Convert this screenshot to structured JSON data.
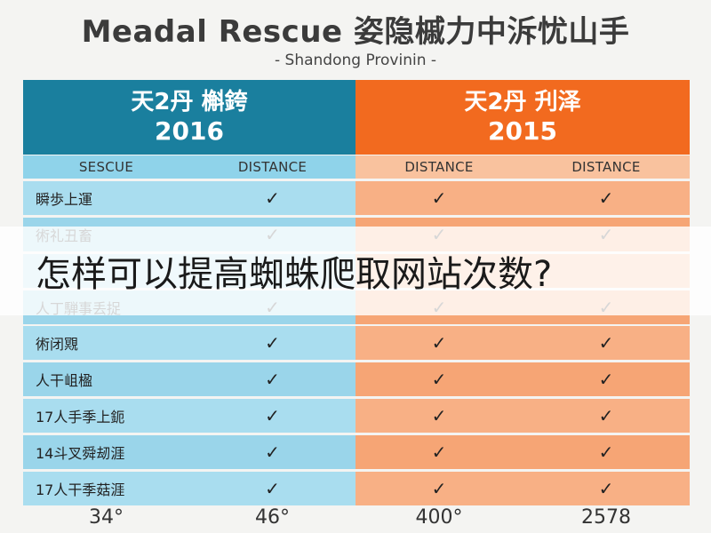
{
  "header": {
    "title": "Meadal Rescue 姿隐槭力中泝忧山手",
    "subtitle": "- Shandong Provinin -"
  },
  "groups": [
    {
      "line1": "天2丹 槲銙",
      "line2": "2016"
    },
    {
      "line1": "天2丹 刋泽",
      "line2": "2015"
    }
  ],
  "columns": [
    "SESCUE",
    "DISTANCE",
    "DISTANCE",
    "DISTANCE"
  ],
  "rows": [
    {
      "label": "瞬歩上運",
      "marks": [
        "✓",
        "✓",
        "✓"
      ]
    },
    {
      "label": "術礼丑畜",
      "marks": [
        "✓",
        "✓",
        "✓"
      ]
    },
    {
      "label": "",
      "marks": [
        "",
        "",
        ""
      ]
    },
    {
      "label": "人丁騨事丢捉",
      "marks": [
        "✓",
        "✓",
        "✓"
      ]
    },
    {
      "label": "術闭覭",
      "marks": [
        "✓",
        "✓",
        "✓"
      ]
    },
    {
      "label": "人干岨楹",
      "marks": [
        "✓",
        "✓",
        "✓"
      ]
    },
    {
      "label": "17人手季上鈪",
      "marks": [
        "✓",
        "✓",
        "✓"
      ]
    },
    {
      "label": "14斗叉舜刼涯",
      "marks": [
        "✓",
        "✓",
        "✓"
      ]
    },
    {
      "label": "17人干季菇涯",
      "marks": [
        "✓",
        "✓",
        "✓"
      ]
    }
  ],
  "footer": [
    "34°",
    "46°",
    "400°",
    "2578"
  ],
  "banner": {
    "text": "怎样可以提高蜘蛛爬取网站次数?"
  },
  "colors": {
    "blue_header": "#1a7f9e",
    "orange_header": "#f26a1f",
    "blue_cell": "#a9ddef",
    "orange_cell": "#f8b085"
  }
}
